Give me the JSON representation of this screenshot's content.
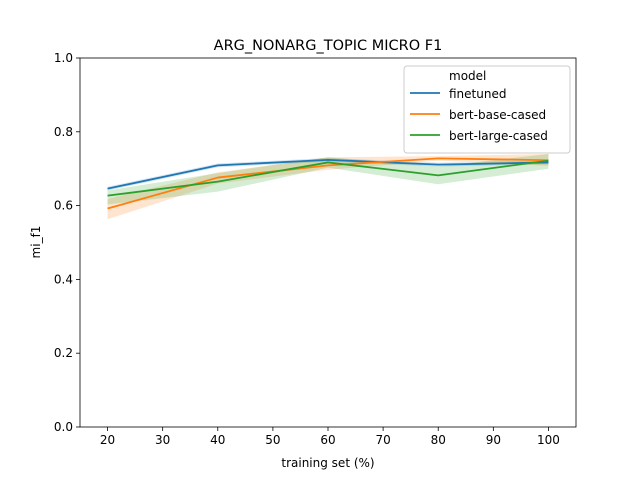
{
  "chart_data": {
    "type": "line",
    "title": "ARG_NONARG_TOPIC MICRO F1",
    "xlabel": "training set (%)",
    "ylabel": "mi_f1",
    "x": [
      20,
      40,
      60,
      80,
      100
    ],
    "xlim": [
      15,
      105
    ],
    "ylim": [
      0.0,
      1.0
    ],
    "xticks": [
      "20",
      "30",
      "40",
      "50",
      "60",
      "70",
      "80",
      "90",
      "100"
    ],
    "yticks": [
      "0.0",
      "0.2",
      "0.4",
      "0.6",
      "0.8",
      "1.0"
    ],
    "grid": false,
    "legend": {
      "title": "model",
      "placement": "top-right"
    },
    "series": [
      {
        "name": "finetuned",
        "color": "#1f77b4",
        "values": [
          0.646,
          0.709,
          0.724,
          0.711,
          0.717
        ],
        "ci_low": [
          0.641,
          0.704,
          0.719,
          0.706,
          0.712
        ],
        "ci_high": [
          0.651,
          0.714,
          0.729,
          0.716,
          0.722
        ]
      },
      {
        "name": "bert-base-cased",
        "color": "#ff7f0e",
        "values": [
          0.592,
          0.676,
          0.709,
          0.728,
          0.723
        ],
        "ci_low": [
          0.563,
          0.66,
          0.697,
          0.722,
          0.708
        ],
        "ci_high": [
          0.618,
          0.69,
          0.731,
          0.734,
          0.74
        ]
      },
      {
        "name": "bert-large-cased",
        "color": "#2ca02c",
        "values": [
          0.627,
          0.665,
          0.717,
          0.682,
          0.722
        ],
        "ci_low": [
          0.603,
          0.638,
          0.703,
          0.658,
          0.7
        ],
        "ci_high": [
          0.641,
          0.688,
          0.731,
          0.706,
          0.74
        ]
      }
    ]
  }
}
